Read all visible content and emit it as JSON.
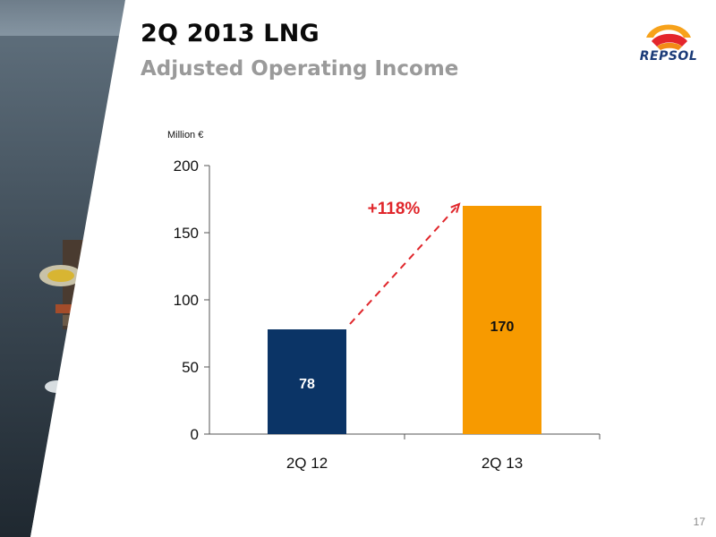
{
  "slide": {
    "title": "2Q 2013 LNG",
    "subtitle": "Adjusted Operating Income",
    "page_number": "17",
    "logo_text": "REPSOL"
  },
  "chart_data": {
    "type": "bar",
    "categories": [
      "2Q 12",
      "2Q 13"
    ],
    "values": [
      78,
      170
    ],
    "data_labels": [
      "78",
      "170"
    ],
    "colors": [
      "#0b3466",
      "#f79a00"
    ],
    "unit_label": "Million €",
    "ylim": [
      0,
      200
    ],
    "yticks": [
      0,
      50,
      100,
      150,
      200
    ],
    "grid": false,
    "annotation": {
      "text": "+118%",
      "color": "#e0262b"
    }
  }
}
